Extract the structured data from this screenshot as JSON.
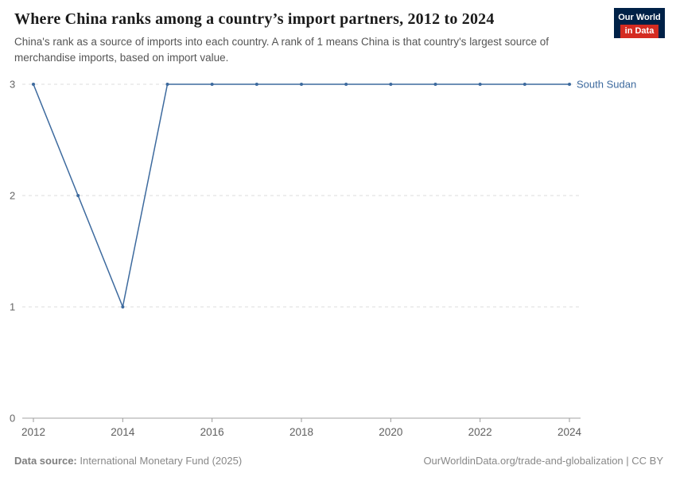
{
  "header": {
    "title": "Where China ranks among a country’s import partners, 2012 to 2024",
    "subtitle": "China's rank as a source of imports into each country. A rank of 1 means China is that country's largest source of merchandise imports, based on import value.",
    "logo": {
      "line1": "Our World",
      "line2": "in Data",
      "bg_color": "#002147",
      "accent_color": "#d42b21"
    }
  },
  "chart_data": {
    "type": "line",
    "title": "Where China ranks among a country's import partners, 2012 to 2024",
    "x": [
      2012,
      2013,
      2014,
      2015,
      2016,
      2017,
      2018,
      2019,
      2020,
      2021,
      2022,
      2023,
      2024
    ],
    "series": [
      {
        "name": "South Sudan",
        "color": "#3d6a9e",
        "values": [
          3,
          2,
          1,
          3,
          3,
          3,
          3,
          3,
          3,
          3,
          3,
          3,
          3
        ]
      }
    ],
    "ylim": [
      0,
      3
    ],
    "yticks": [
      0,
      1,
      2,
      3
    ],
    "xticks": [
      2012,
      2014,
      2016,
      2018,
      2020,
      2022,
      2024
    ],
    "grid": "horizontal-dashed",
    "legend_position": "right-of-line",
    "axis_color": "#a3a3a3",
    "grid_color": "#dcdcdc",
    "tick_label_color": "#5f5f5f"
  },
  "footer": {
    "datasource_label": "Data source:",
    "datasource_value": "International Monetary Fund (2025)",
    "right_text": "OurWorldinData.org/trade-and-globalization | CC BY"
  }
}
